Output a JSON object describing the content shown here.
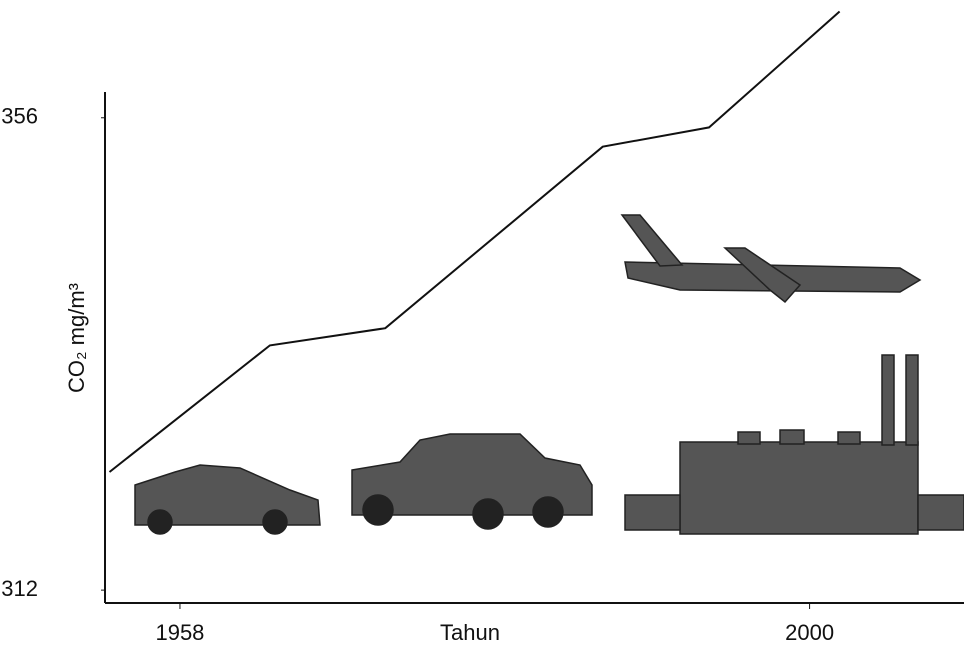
{
  "chart_data": {
    "type": "line",
    "y_label": "CO₂ mg/m³",
    "x_label": "Tahun",
    "x": [
      1953.3,
      1964,
      1971.7,
      1986.2,
      1993.3,
      2002
    ],
    "values": [
      323,
      334.8,
      336.4,
      353.3,
      355.1,
      365.9
    ],
    "color": "#111111",
    "xlim": [
      1953,
      2010.3
    ],
    "ylim": [
      310.8,
      358.4
    ],
    "xticks": [
      1958,
      2000
    ],
    "yticks": [
      312,
      356
    ]
  }
}
